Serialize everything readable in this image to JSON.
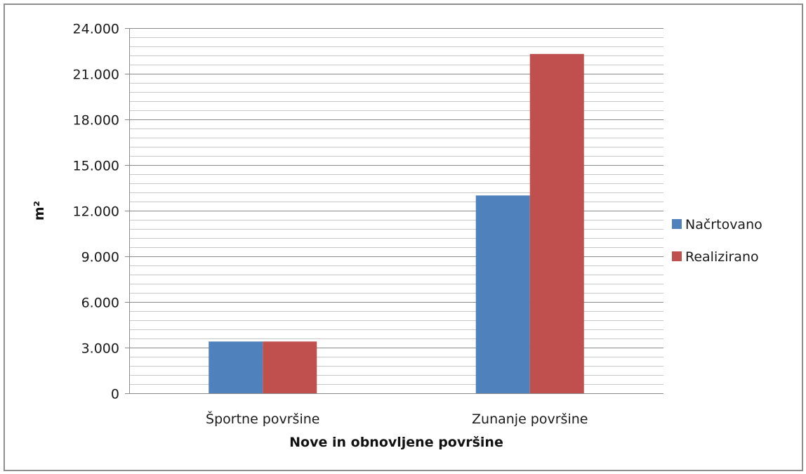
{
  "chart_data": {
    "type": "bar",
    "categories": [
      "Športne površine",
      "Zunanje površine"
    ],
    "series": [
      {
        "name": "Načrtovano",
        "values": [
          3400,
          13000
        ],
        "color": "#4f81bd"
      },
      {
        "name": "Realizirano",
        "values": [
          3400,
          22300
        ],
        "color": "#c0504d"
      }
    ],
    "xlabel": "Nove in obnovljene površine",
    "ylabel": "m²",
    "ylim": [
      0,
      24000
    ],
    "major_ticks": [
      0,
      3000,
      6000,
      9000,
      12000,
      15000,
      18000,
      21000,
      24000
    ],
    "tick_labels": [
      "0",
      "3.000",
      "6.000",
      "9.000",
      "12.000",
      "15.000",
      "18.000",
      "21.000",
      "24.000"
    ],
    "minor_step": 600,
    "grid": true,
    "legend_position": "right"
  }
}
